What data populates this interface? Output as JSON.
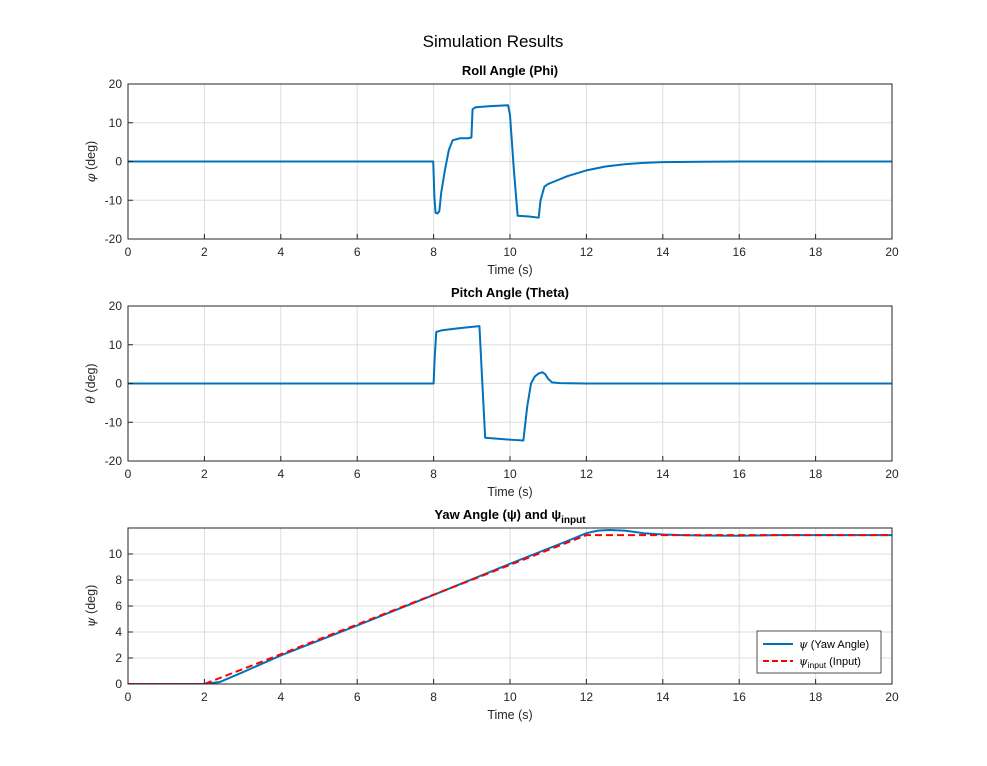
{
  "figure_title": "Simulation Results",
  "colors": {
    "line": "#0072BD",
    "input": "#FF0000",
    "grid": "#DDDDDD",
    "axis": "#262626"
  },
  "chart_data": [
    {
      "type": "line",
      "title": "Roll Angle (Phi)",
      "xlabel": "Time (s)",
      "ylabel_symbol": "φ",
      "ylabel_unit": " (deg)",
      "xlim": [
        0,
        20
      ],
      "ylim": [
        -20,
        20
      ],
      "xticks": [
        0,
        2,
        4,
        6,
        8,
        10,
        12,
        14,
        16,
        18,
        20
      ],
      "yticks": [
        -20,
        -10,
        0,
        10,
        20
      ],
      "grid": true,
      "series": [
        {
          "x": [
            0,
            7.99,
            8.02,
            8.05,
            8.1,
            8.15,
            8.2,
            8.3,
            8.4,
            8.5,
            8.7,
            8.9,
            8.99,
            9.02,
            9.1,
            9.5,
            9.95,
            10.0,
            10.1,
            10.2,
            10.5,
            10.75,
            10.8,
            10.9,
            11.0,
            11.2,
            11.5,
            12.0,
            12.5,
            13.0,
            13.5,
            14.0,
            15.0,
            16.0,
            17.0,
            20.0
          ],
          "y": [
            0,
            0,
            -9,
            -13.2,
            -13.4,
            -12.8,
            -8,
            -2,
            3,
            5.5,
            6,
            6,
            6.2,
            13.5,
            14,
            14.3,
            14.5,
            12,
            -2,
            -14,
            -14.2,
            -14.5,
            -10,
            -6.5,
            -5.8,
            -5,
            -3.8,
            -2.3,
            -1.3,
            -0.7,
            -0.35,
            -0.15,
            -0.05,
            0,
            0,
            0
          ]
        }
      ]
    },
    {
      "type": "line",
      "title": "Pitch Angle (Theta)",
      "xlabel": "Time (s)",
      "ylabel_symbol": "θ",
      "ylabel_unit": " (deg)",
      "xlim": [
        0,
        20
      ],
      "ylim": [
        -20,
        20
      ],
      "xticks": [
        0,
        2,
        4,
        6,
        8,
        10,
        12,
        14,
        16,
        18,
        20
      ],
      "yticks": [
        -20,
        -10,
        0,
        10,
        20
      ],
      "grid": true,
      "series": [
        {
          "x": [
            0,
            8.0,
            8.03,
            8.07,
            8.2,
            8.6,
            9.0,
            9.2,
            9.25,
            9.35,
            9.6,
            10.0,
            10.35,
            10.45,
            10.55,
            10.65,
            10.75,
            10.85,
            10.92,
            11.0,
            11.1,
            11.3,
            12.0,
            13.0,
            20.0
          ],
          "y": [
            0,
            0,
            7,
            13.3,
            13.7,
            14.2,
            14.6,
            14.8,
            5,
            -14,
            -14.2,
            -14.5,
            -14.7,
            -6,
            0,
            1.8,
            2.6,
            2.9,
            2.4,
            1.2,
            0.3,
            0.1,
            0,
            0,
            0
          ]
        }
      ]
    },
    {
      "type": "line",
      "title": "Yaw Angle (ψ) and ψ",
      "title_sub": "input",
      "xlabel": "Time (s)",
      "ylabel_symbol": "ψ",
      "ylabel_unit": " (deg)",
      "xlim": [
        0,
        20
      ],
      "ylim": [
        0,
        12
      ],
      "xticks": [
        0,
        2,
        4,
        6,
        8,
        10,
        12,
        14,
        16,
        18,
        20
      ],
      "yticks": [
        0,
        2,
        4,
        6,
        8,
        10
      ],
      "grid": true,
      "legend_position": "bottom-right",
      "series": [
        {
          "name": "ψ (Yaw Angle)",
          "legend_main": "ψ",
          "legend_sub": "",
          "legend_rest": " (Yaw Angle)",
          "style": "solid",
          "x": [
            0,
            2.0,
            2.4,
            3.0,
            4.0,
            6.0,
            8.0,
            10.0,
            11.5,
            12.0,
            12.3,
            12.6,
            13.0,
            13.5,
            14.0,
            14.5,
            15.0,
            16.0,
            17.0,
            20.0
          ],
          "y": [
            0,
            0,
            0.15,
            0.9,
            2.2,
            4.5,
            6.85,
            9.25,
            11.0,
            11.6,
            11.8,
            11.85,
            11.8,
            11.6,
            11.5,
            11.45,
            11.42,
            11.4,
            11.45,
            11.45
          ]
        },
        {
          "name": "ψinput (Input)",
          "legend_main": "ψ",
          "legend_sub": "input",
          "legend_rest": " (Input)",
          "style": "dashed",
          "x": [
            0,
            2.0,
            12.0,
            20.0
          ],
          "y": [
            0,
            0,
            11.45,
            11.45
          ]
        }
      ]
    }
  ]
}
